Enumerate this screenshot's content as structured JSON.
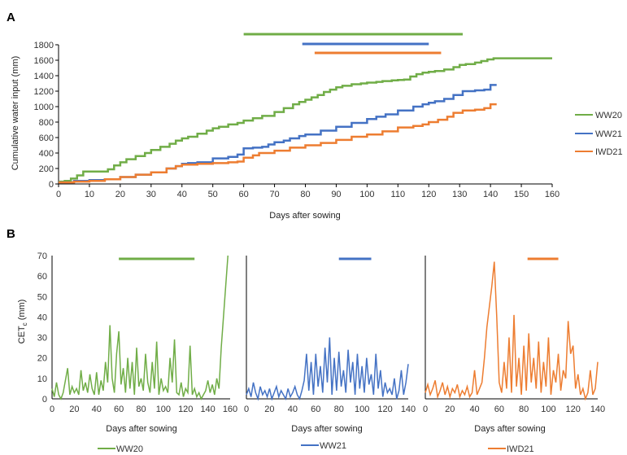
{
  "colors": {
    "WW20": "#70AD47",
    "WW21": "#4472C4",
    "IWD21": "#ED7D31"
  },
  "chart_data": [
    {
      "type": "line",
      "panel": "A",
      "panel_label": "A",
      "xlabel": "Days after sowing",
      "ylabel": "Cumulative water input (mm)",
      "xlim": [
        0,
        160
      ],
      "ylim": [
        0,
        1800
      ],
      "xticks": [
        0,
        10,
        20,
        30,
        40,
        50,
        60,
        70,
        80,
        90,
        100,
        110,
        120,
        130,
        140,
        150,
        160
      ],
      "yticks": [
        0,
        200,
        400,
        600,
        800,
        1000,
        1200,
        1400,
        1600,
        1800
      ],
      "grid": false,
      "legend_position": "right",
      "series": [
        {
          "name": "WW20",
          "color": "#70AD47",
          "x": [
            0,
            2,
            4,
            6,
            8,
            14,
            16,
            18,
            20,
            22,
            25,
            28,
            30,
            33,
            36,
            38,
            40,
            42,
            45,
            48,
            50,
            52,
            55,
            58,
            60,
            63,
            66,
            70,
            73,
            76,
            78,
            80,
            82,
            84,
            86,
            88,
            90,
            92,
            95,
            98,
            100,
            103,
            105,
            108,
            110,
            112,
            114,
            116,
            118,
            120,
            122,
            125,
            128,
            130,
            132,
            135,
            137,
            139,
            141,
            145,
            150,
            155,
            160
          ],
          "y": [
            30,
            40,
            70,
            110,
            160,
            160,
            190,
            240,
            280,
            320,
            360,
            400,
            440,
            480,
            520,
            560,
            590,
            610,
            650,
            690,
            720,
            740,
            770,
            790,
            820,
            850,
            880,
            930,
            980,
            1030,
            1060,
            1090,
            1120,
            1150,
            1190,
            1220,
            1250,
            1270,
            1290,
            1300,
            1310,
            1320,
            1330,
            1340,
            1345,
            1350,
            1390,
            1420,
            1440,
            1450,
            1460,
            1480,
            1510,
            1540,
            1550,
            1570,
            1590,
            1610,
            1625,
            1625,
            1625,
            1625,
            1625
          ]
        },
        {
          "name": "WW21",
          "color": "#4472C4",
          "x": [
            0,
            5,
            10,
            15,
            20,
            25,
            30,
            35,
            38,
            40,
            42,
            45,
            50,
            55,
            58,
            60,
            63,
            66,
            68,
            70,
            73,
            75,
            78,
            80,
            85,
            90,
            95,
            100,
            103,
            106,
            110,
            115,
            118,
            120,
            122,
            125,
            128,
            131,
            135,
            138,
            140,
            142
          ],
          "y": [
            20,
            40,
            50,
            60,
            90,
            120,
            150,
            200,
            230,
            260,
            270,
            280,
            330,
            350,
            380,
            460,
            470,
            480,
            510,
            540,
            560,
            590,
            620,
            640,
            690,
            740,
            790,
            840,
            870,
            900,
            950,
            1000,
            1030,
            1050,
            1070,
            1100,
            1150,
            1200,
            1210,
            1220,
            1280,
            1280
          ]
        },
        {
          "name": "IWD21",
          "color": "#ED7D31",
          "x": [
            0,
            5,
            10,
            15,
            20,
            25,
            30,
            35,
            38,
            40,
            45,
            50,
            55,
            58,
            60,
            63,
            65,
            70,
            75,
            80,
            85,
            90,
            95,
            100,
            105,
            110,
            115,
            118,
            120,
            123,
            126,
            128,
            131,
            135,
            138,
            140,
            142
          ],
          "y": [
            20,
            30,
            40,
            60,
            90,
            120,
            150,
            200,
            230,
            250,
            260,
            270,
            280,
            290,
            340,
            370,
            400,
            430,
            470,
            500,
            530,
            570,
            610,
            640,
            680,
            730,
            750,
            770,
            800,
            830,
            870,
            920,
            950,
            960,
            980,
            1030,
            1030
          ]
        }
      ],
      "period_bars": [
        {
          "name": "WW20",
          "color": "#70AD47",
          "x0": 60,
          "x1": 131
        },
        {
          "name": "WW21",
          "color": "#4472C4",
          "x0": 79,
          "x1": 120
        },
        {
          "name": "IWD21",
          "color": "#ED7D31",
          "x0": 83,
          "x1": 124
        }
      ]
    },
    {
      "type": "line",
      "panel": "B1",
      "panel_label": "B",
      "xlabel": "Days after sowing",
      "ylabel": "CET",
      "ylabel_sub": "c",
      "ylabel_unit": " (mm)",
      "xlim": [
        0,
        160
      ],
      "ylim": [
        0,
        70
      ],
      "xticks": [
        0,
        20,
        40,
        60,
        80,
        100,
        120,
        140,
        160
      ],
      "yticks": [
        0,
        10,
        20,
        30,
        40,
        50,
        60,
        70
      ],
      "series": [
        {
          "name": "WW20",
          "color": "#70AD47",
          "x": [
            0,
            2,
            4,
            6,
            8,
            10,
            12,
            14,
            16,
            18,
            20,
            22,
            24,
            26,
            28,
            30,
            32,
            34,
            36,
            38,
            40,
            42,
            44,
            46,
            48,
            50,
            52,
            54,
            56,
            58,
            60,
            62,
            64,
            66,
            68,
            70,
            72,
            74,
            76,
            78,
            80,
            82,
            84,
            86,
            88,
            90,
            92,
            94,
            96,
            98,
            100,
            102,
            104,
            106,
            108,
            110,
            112,
            114,
            116,
            118,
            120,
            122,
            124,
            126,
            128,
            130,
            132,
            134,
            136,
            138,
            140,
            142,
            144,
            146,
            148,
            150,
            152,
            154,
            156,
            158
          ],
          "y": [
            5,
            1,
            8,
            2,
            0,
            3,
            9,
            15,
            2,
            6,
            3,
            5,
            2,
            14,
            4,
            8,
            3,
            12,
            5,
            2,
            13,
            2,
            9,
            4,
            18,
            8,
            36,
            10,
            3,
            22,
            33,
            7,
            15,
            3,
            20,
            5,
            18,
            2,
            25,
            6,
            10,
            4,
            22,
            8,
            3,
            18,
            5,
            28,
            2,
            10,
            4,
            6,
            3,
            20,
            8,
            29,
            3,
            2,
            8,
            1,
            5,
            3,
            26,
            2,
            5,
            1,
            3,
            0,
            2,
            4,
            9,
            3,
            7,
            2,
            10,
            5,
            25,
            40,
            55,
            70
          ]
        },
        {
          "name": "period",
          "color": "#70AD47",
          "x0": 60,
          "x1": 128
        }
      ]
    },
    {
      "type": "line",
      "panel": "B2",
      "xlabel": "Days after sowing",
      "xlim": [
        0,
        140
      ],
      "ylim": [
        0,
        70
      ],
      "xticks": [
        0,
        20,
        40,
        60,
        80,
        100,
        120,
        140
      ],
      "series": [
        {
          "name": "WW21",
          "color": "#4472C4",
          "x": [
            0,
            2,
            4,
            6,
            8,
            10,
            12,
            14,
            16,
            18,
            20,
            22,
            24,
            26,
            28,
            30,
            32,
            34,
            36,
            38,
            40,
            42,
            44,
            46,
            48,
            50,
            52,
            54,
            56,
            58,
            60,
            62,
            64,
            66,
            68,
            70,
            72,
            74,
            76,
            78,
            80,
            82,
            84,
            86,
            88,
            90,
            92,
            94,
            96,
            98,
            100,
            102,
            104,
            106,
            108,
            110,
            112,
            114,
            116,
            118,
            120,
            122,
            124,
            126,
            128,
            130,
            132,
            134,
            136,
            138,
            140
          ],
          "y": [
            2,
            5,
            1,
            8,
            3,
            0,
            6,
            2,
            4,
            1,
            5,
            0,
            3,
            6,
            1,
            4,
            2,
            0,
            5,
            1,
            3,
            6,
            2,
            0,
            4,
            9,
            22,
            4,
            18,
            2,
            22,
            6,
            16,
            3,
            25,
            8,
            30,
            2,
            20,
            4,
            23,
            6,
            14,
            3,
            24,
            8,
            18,
            2,
            22,
            5,
            16,
            3,
            20,
            7,
            12,
            2,
            22,
            5,
            14,
            1,
            8,
            3,
            5,
            2,
            10,
            0,
            4,
            14,
            2,
            8,
            17
          ]
        },
        {
          "name": "period",
          "color": "#4472C4",
          "x0": 80,
          "x1": 108
        }
      ]
    },
    {
      "type": "line",
      "panel": "B3",
      "xlabel": "Days after sowing",
      "xlim": [
        0,
        140
      ],
      "ylim": [
        0,
        70
      ],
      "xticks": [
        0,
        20,
        40,
        60,
        80,
        100,
        120,
        140
      ],
      "series": [
        {
          "name": "IWD21",
          "color": "#ED7D31",
          "x": [
            0,
            2,
            4,
            6,
            8,
            10,
            12,
            14,
            16,
            18,
            20,
            22,
            24,
            26,
            28,
            30,
            32,
            34,
            36,
            38,
            40,
            42,
            44,
            46,
            48,
            50,
            52,
            54,
            56,
            58,
            60,
            62,
            64,
            66,
            68,
            70,
            72,
            74,
            76,
            78,
            80,
            82,
            84,
            86,
            88,
            90,
            92,
            94,
            96,
            98,
            100,
            102,
            104,
            106,
            108,
            110,
            112,
            114,
            116,
            118,
            120,
            122,
            124,
            126,
            128,
            130,
            132,
            134,
            136,
            138,
            140
          ],
          "y": [
            3,
            7,
            2,
            5,
            9,
            1,
            4,
            8,
            2,
            6,
            1,
            5,
            3,
            7,
            1,
            4,
            2,
            6,
            1,
            3,
            14,
            2,
            5,
            8,
            20,
            35,
            45,
            55,
            67,
            40,
            8,
            3,
            18,
            5,
            30,
            3,
            41,
            6,
            20,
            2,
            26,
            4,
            32,
            8,
            20,
            5,
            28,
            3,
            18,
            6,
            30,
            2,
            14,
            8,
            22,
            4,
            14,
            10,
            38,
            22,
            26,
            5,
            12,
            2,
            5,
            0,
            3,
            14,
            2,
            5,
            18
          ]
        },
        {
          "name": "period",
          "color": "#ED7D31",
          "x0": 83,
          "x1": 108
        }
      ]
    }
  ],
  "panel_b_legend": [
    "WW20",
    "WW21",
    "IWD21"
  ]
}
